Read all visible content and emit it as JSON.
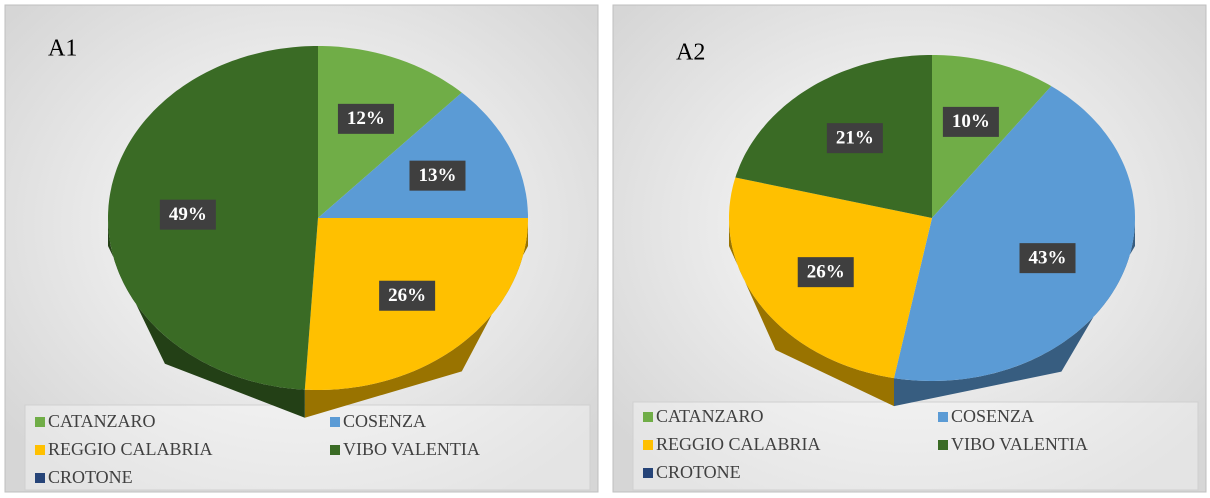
{
  "chart_data": [
    {
      "type": "pie",
      "title": "A1",
      "categories": [
        "CATANZARO",
        "COSENZA",
        "REGGIO CALABRIA",
        "VIBO VALENTIA",
        "CROTONE"
      ],
      "values": [
        12,
        13,
        26,
        49,
        0
      ],
      "value_labels": [
        "12%",
        "13%",
        "26%",
        "49%",
        null
      ],
      "colors": [
        "#70ad47",
        "#5b9bd5",
        "#ffc000",
        "#3a6b25",
        "#264478"
      ]
    },
    {
      "type": "pie",
      "title": "A2",
      "categories": [
        "CATANZARO",
        "COSENZA",
        "REGGIO CALABRIA",
        "VIBO VALENTIA",
        "CROTONE"
      ],
      "values": [
        10,
        43,
        26,
        21,
        0
      ],
      "value_labels": [
        "10%",
        "43%",
        "26%",
        "21%",
        null
      ],
      "colors": [
        "#70ad47",
        "#5b9bd5",
        "#ffc000",
        "#3a6b25",
        "#264478"
      ]
    }
  ]
}
